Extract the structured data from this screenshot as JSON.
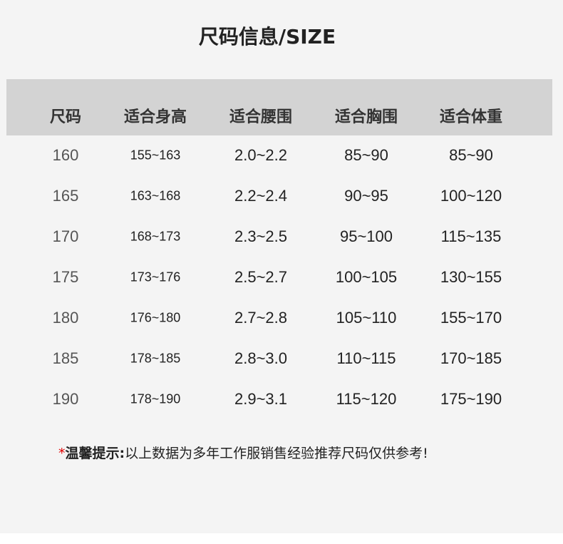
{
  "title": "尺码信息/SIZE",
  "table": {
    "headers": [
      "尺码",
      "适合身高",
      "适合腰围",
      "适合胸围",
      "适合体重"
    ],
    "rows": [
      [
        "160",
        "155~163",
        "2.0~2.2",
        "85~90",
        "85~90"
      ],
      [
        "165",
        "163~168",
        "2.2~2.4",
        "90~95",
        "100~120"
      ],
      [
        "170",
        "168~173",
        "2.3~2.5",
        "95~100",
        "115~135"
      ],
      [
        "175",
        "173~176",
        "2.5~2.7",
        "100~105",
        "130~155"
      ],
      [
        "180",
        "176~180",
        "2.7~2.8",
        "105~110",
        "155~170"
      ],
      [
        "185",
        "178~185",
        "2.8~3.0",
        "110~115",
        "170~185"
      ],
      [
        "190",
        "178~190",
        "2.9~3.1",
        "115~120",
        "175~190"
      ]
    ]
  },
  "note": {
    "star": "*",
    "label": "温馨提示:",
    "text": "以上数据为多年工作服销售经验推荐尺码仅供参考!"
  },
  "colors": {
    "header_bg": "#d3d3d3",
    "page_bg": "#f4f4f4",
    "star": "#e00000"
  }
}
